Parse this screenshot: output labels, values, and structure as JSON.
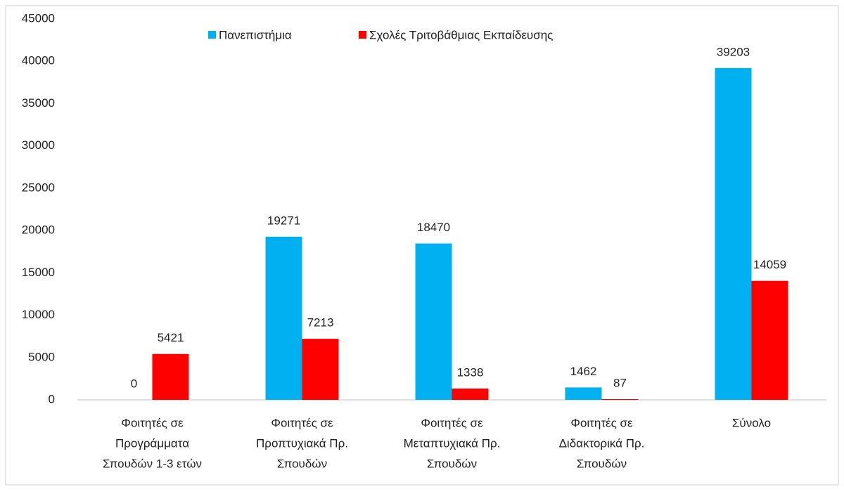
{
  "chart_data": {
    "type": "bar",
    "categories": [
      [
        "Φοιτητές σε",
        "Προγράμματα",
        "Σπουδών 1-3 ετών"
      ],
      [
        "Φοιτητές σε",
        "Προπτυχιακά Πρ.",
        "Σπουδών"
      ],
      [
        "Φοιτητές σε",
        "Μεταπτυχιακά Πρ.",
        "Σπουδών"
      ],
      [
        "Φοιτητές σε",
        "Διδακτορικά Πρ.",
        "Σπουδών"
      ],
      [
        "Σύνολο"
      ]
    ],
    "series": [
      {
        "name": "Πανεπιστήμια",
        "color": "#00b0f0",
        "values": [
          0,
          19271,
          18470,
          1462,
          39203
        ]
      },
      {
        "name": "Σχολές Τριτοβάθμιας Εκπαίδευσης",
        "color": "#ff0000",
        "values": [
          5421,
          7213,
          1338,
          87,
          14059
        ]
      }
    ],
    "ylim": [
      0,
      45000
    ],
    "yticks": [
      0,
      5000,
      10000,
      15000,
      20000,
      25000,
      30000,
      35000,
      40000,
      45000
    ],
    "grid": false,
    "legend": "top"
  }
}
